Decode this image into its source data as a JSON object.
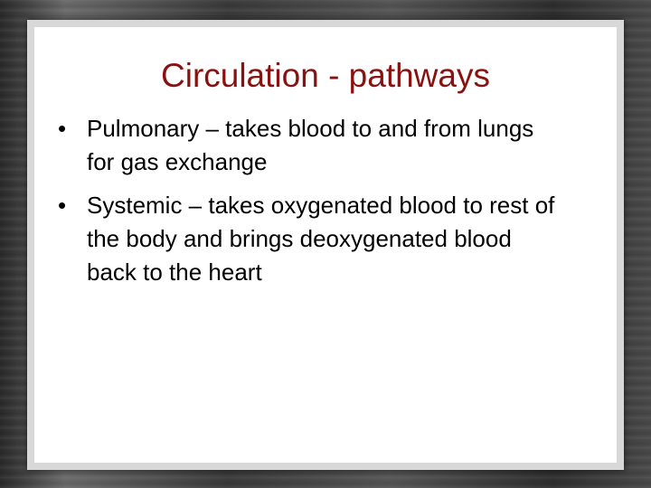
{
  "slide": {
    "title": "Circulation - pathways",
    "bullets": [
      "Pulmonary – takes blood to and from lungs for gas exchange",
      "Systemic – takes oxygenated blood to rest of the body and brings deoxygenated blood back to the heart"
    ]
  }
}
